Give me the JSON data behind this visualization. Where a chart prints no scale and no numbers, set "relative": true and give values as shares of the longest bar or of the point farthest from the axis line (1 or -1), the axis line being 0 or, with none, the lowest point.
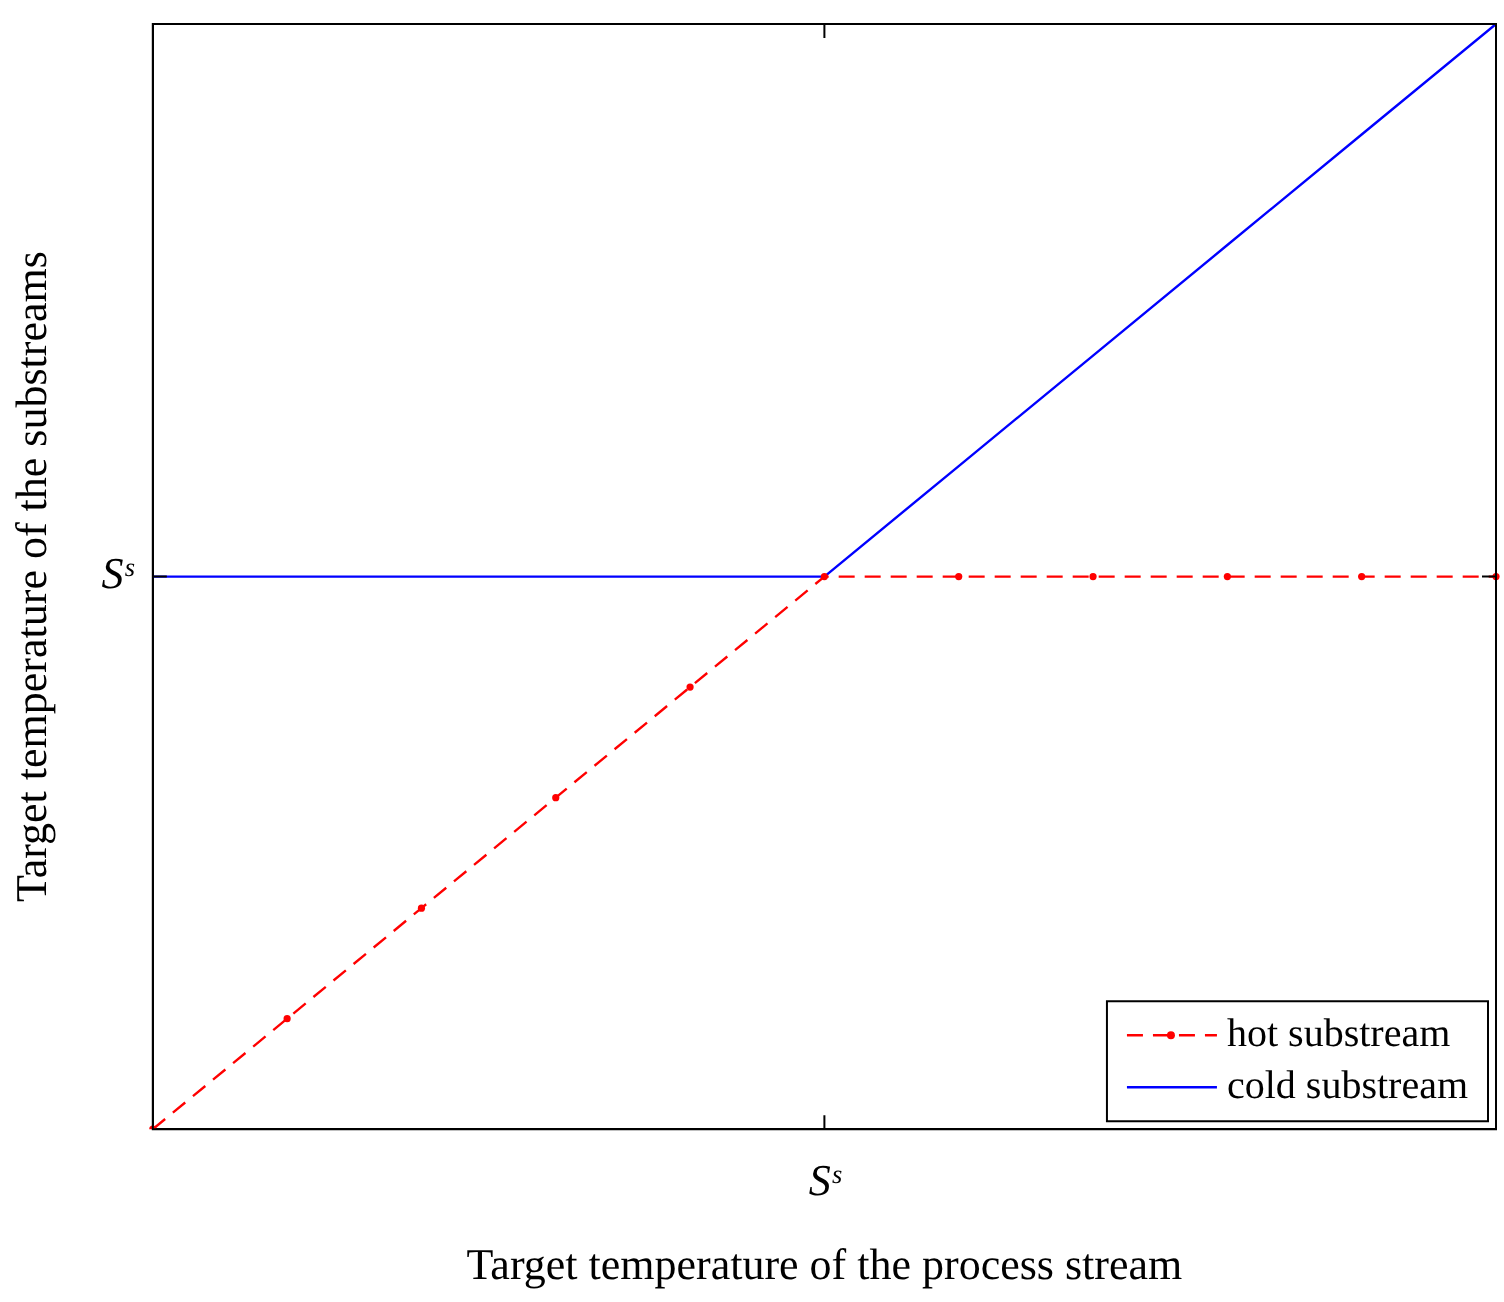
{
  "chart_data": {
    "type": "line",
    "relative": true,
    "xlabel": "Target temperature of the process stream",
    "ylabel": "Target temperature of the substreams",
    "annotations": [
      "Sˢ",
      "Sˢ"
    ],
    "legend": "bottom right",
    "categories": [
      null,
      null,
      null,
      null,
      null,
      null,
      null,
      null,
      null,
      null,
      null
    ],
    "series": [
      {
        "name": "hot substream",
        "color": "#ff0000",
        "line_style": "dashed",
        "marker": "circle",
        "values": [
          0,
          0.1,
          0.2,
          0.3,
          0.4,
          0.5,
          0.5,
          0.5,
          0.5,
          0.5,
          0.5
        ]
      },
      {
        "name": "cold substream",
        "color": "#0000ff",
        "line_style": "solid",
        "marker": "none",
        "values": [
          0.5,
          0.5,
          0.5,
          0.5,
          0.5,
          0.5,
          0.6,
          0.7,
          0.8,
          0.9,
          1
        ]
      }
    ]
  }
}
